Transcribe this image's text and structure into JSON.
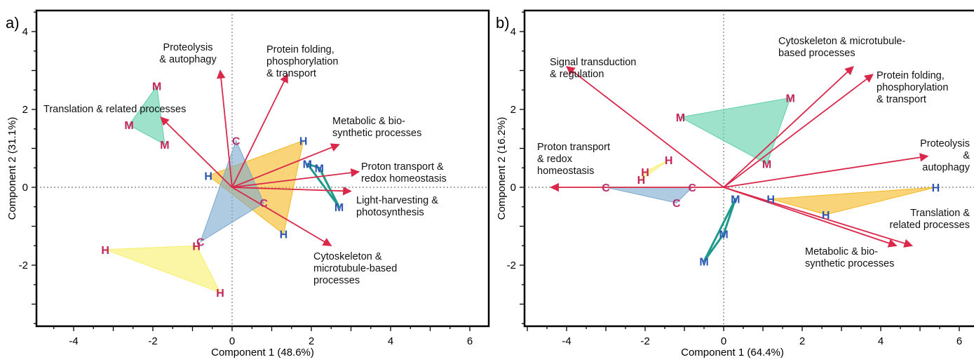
{
  "colors": {
    "arrow": "#d9284a",
    "M": "#c2245a",
    "H_blue": "#2d55b5",
    "H_magenta": "#c2245a",
    "C": "#b8306f",
    "teal_fill": "#5fcfa8",
    "gold_fill": "#f5b820",
    "blue_fill": "#7aa8cf",
    "yellow_fill": "#f8ef6a",
    "teal_line": "#1f9a8a"
  },
  "chart_data": [
    {
      "type": "scatter",
      "panel_label": "a)",
      "xlabel": "Component 1 (48.6%)",
      "ylabel": "Component 2 (31.1%)",
      "xlim": [
        -5,
        7
      ],
      "ylim": [
        -3.5,
        4.5
      ],
      "xticks": [
        -4,
        -2,
        0,
        2,
        4,
        6
      ],
      "yticks": [
        -2,
        0,
        2,
        4
      ],
      "vectors": [
        {
          "label": "Translation & related processes",
          "x": -1.8,
          "y": 1.8
        },
        {
          "label": "Proteolysis\n& autophagy",
          "x": -0.3,
          "y": 3.0
        },
        {
          "label": "Protein folding,\nphosphorylation\n& transport",
          "x": 1.4,
          "y": 2.9
        },
        {
          "label": "Metabolic & bio-\nsynthetic processes",
          "x": 2.7,
          "y": 1.1
        },
        {
          "label": "Proton transport &\nredox homeostasis",
          "x": 3.2,
          "y": 0.4
        },
        {
          "label": "Light-harvesting &\nphotosynthesis",
          "x": 3.0,
          "y": -0.1
        },
        {
          "label": "Cytoskeleton &\nmicrotubule-based\nprocesses",
          "x": 2.5,
          "y": -1.5
        }
      ],
      "groups": [
        {
          "color_key": "teal_fill",
          "points": [
            [
              "M",
              -1.9,
              2.6
            ],
            [
              "M",
              -2.6,
              1.6
            ],
            [
              "M",
              -1.7,
              1.1
            ]
          ]
        },
        {
          "color_key": "gold_fill",
          "points": [
            [
              "H",
              1.8,
              1.2
            ],
            [
              "H",
              -0.6,
              0.3
            ],
            [
              "H",
              1.3,
              -1.2
            ]
          ]
        },
        {
          "color_key": "blue_fill",
          "points": [
            [
              "C",
              0.1,
              1.2
            ],
            [
              "C",
              0.8,
              -0.4
            ],
            [
              "C",
              -0.8,
              -1.4
            ]
          ]
        },
        {
          "color_key": "yellow_fill",
          "points": [
            [
              "H",
              -3.2,
              -1.6
            ],
            [
              "H",
              -0.9,
              -1.5
            ],
            [
              "H",
              -0.3,
              -2.7
            ]
          ]
        },
        {
          "color_key": "teal_line",
          "points": [
            [
              "M",
              1.9,
              0.6
            ],
            [
              "M",
              2.2,
              0.5
            ],
            [
              "M",
              2.7,
              -0.5
            ]
          ]
        }
      ],
      "point_colors": [
        [
          "M",
          "M",
          "M"
        ],
        [
          "H_blue",
          "H_blue",
          "H_blue"
        ],
        [
          "C",
          "C",
          "C"
        ],
        [
          "H_magenta",
          "H_magenta",
          "H_magenta"
        ],
        [
          "H_blue",
          "H_blue",
          "H_blue"
        ]
      ]
    },
    {
      "type": "scatter",
      "panel_label": "b)",
      "xlabel": "Component 1 (64.4%)",
      "ylabel": "Component 2 (16.2%)",
      "xlim": [
        -5,
        6.2
      ],
      "ylim": [
        -3.5,
        4.5
      ],
      "xticks": [
        -4,
        -2,
        0,
        2,
        4,
        6
      ],
      "yticks": [
        -2,
        0,
        2,
        4
      ],
      "vectors": [
        {
          "label": "Signal transduction\n& regulation",
          "x": -4.0,
          "y": 3.1
        },
        {
          "label": "Proton transport\n& redox\nhomeostasis",
          "x": -4.4,
          "y": 0.0
        },
        {
          "label": "Cytoskeleton & microtubule-\nbased processes",
          "x": 3.3,
          "y": 3.1
        },
        {
          "label": "Protein folding,\nphosphorylation\n& transport",
          "x": 3.8,
          "y": 2.9
        },
        {
          "label": "Proteolysis\n&\nautophagy",
          "x": 5.2,
          "y": 0.8
        },
        {
          "label": "Translation &\nrelated processes",
          "x": 4.4,
          "y": -1.5
        },
        {
          "label": "Metabolic & bio-\nsynthetic processes",
          "x": 4.8,
          "y": -1.5
        }
      ],
      "groups": [
        {
          "color_key": "teal_fill",
          "points": [
            [
              "M",
              -1.1,
              1.8
            ],
            [
              "M",
              1.7,
              2.3
            ],
            [
              "M",
              1.1,
              0.6
            ]
          ]
        },
        {
          "color_key": "gold_fill",
          "points": [
            [
              "H",
              1.2,
              -0.3
            ],
            [
              "H",
              5.4,
              0.0
            ],
            [
              "H",
              2.6,
              -0.7
            ]
          ]
        },
        {
          "color_key": "blue_fill",
          "points": [
            [
              "C",
              -3.0,
              0.0
            ],
            [
              "C",
              -0.8,
              0.0
            ],
            [
              "C",
              -1.2,
              -0.4
            ]
          ]
        },
        {
          "color_key": "yellow_fill",
          "points": [
            [
              "H",
              -2.0,
              0.4
            ],
            [
              "H",
              -1.4,
              0.7
            ],
            [
              "H",
              -2.1,
              0.2
            ]
          ]
        },
        {
          "color_key": "teal_line",
          "points": [
            [
              "M",
              0.3,
              -0.3
            ],
            [
              "M",
              0.0,
              -1.2
            ],
            [
              "M",
              -0.5,
              -1.9
            ]
          ]
        }
      ],
      "point_colors": [
        [
          "M",
          "M",
          "M"
        ],
        [
          "H_blue",
          "H_blue",
          "H_blue"
        ],
        [
          "C",
          "C",
          "C"
        ],
        [
          "H_magenta",
          "H_magenta",
          "H_magenta"
        ],
        [
          "H_blue",
          "H_blue",
          "H_blue"
        ]
      ]
    }
  ]
}
